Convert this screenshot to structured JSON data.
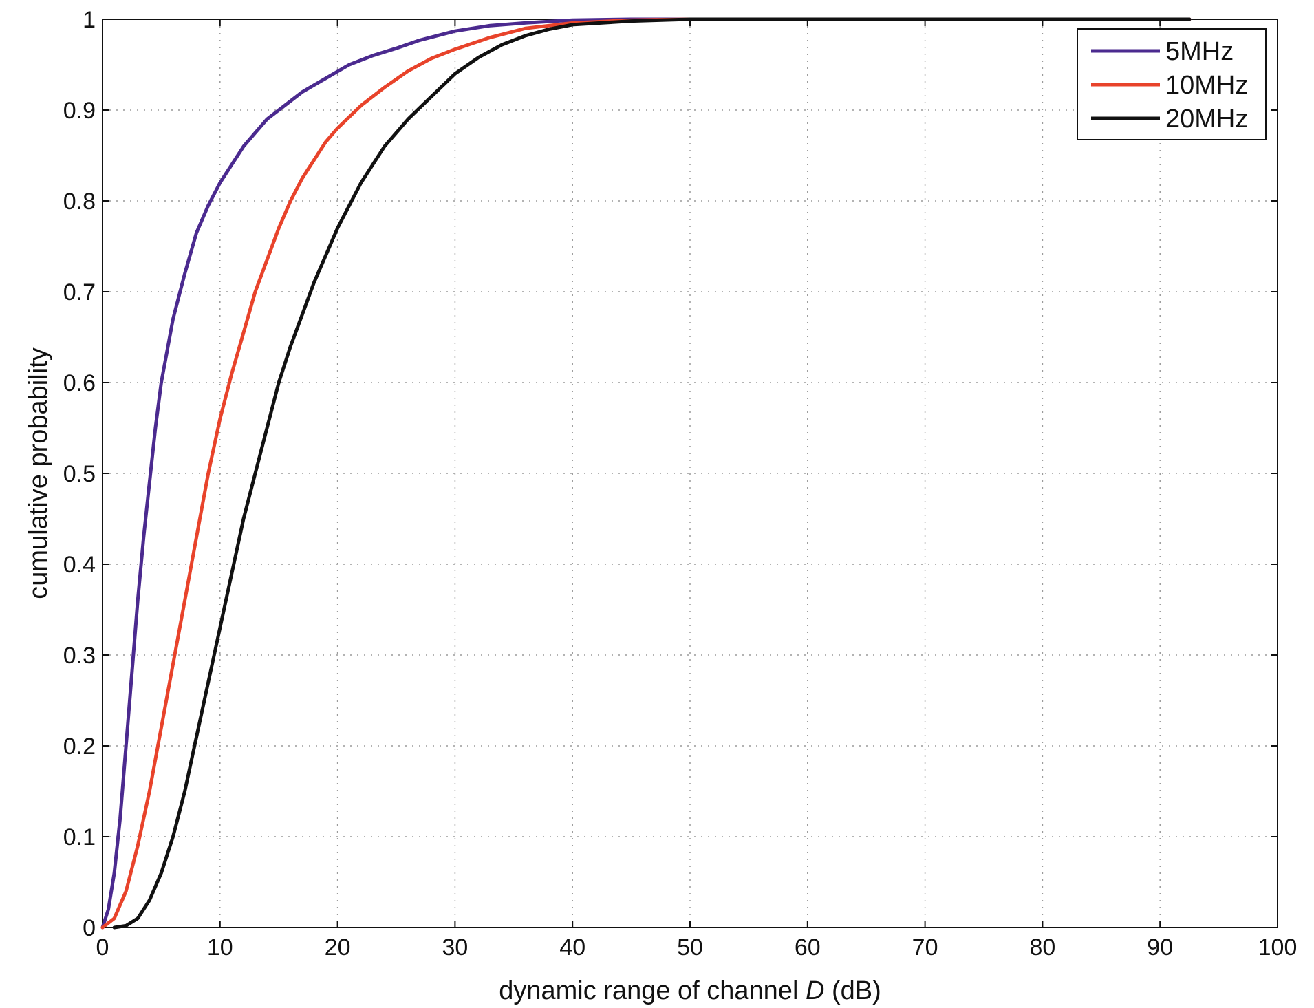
{
  "chart_data": {
    "type": "line",
    "title": "",
    "xlabel_prefix": "dynamic range of channel ",
    "xlabel_var": "D",
    "xlabel_suffix": " (dB)",
    "ylabel": "cumulative probability",
    "xlim": [
      0,
      100
    ],
    "ylim": [
      0,
      1
    ],
    "xticks": [
      0,
      10,
      20,
      30,
      40,
      50,
      60,
      70,
      80,
      90,
      100
    ],
    "yticks": [
      0,
      0.1,
      0.2,
      0.3,
      0.4,
      0.5,
      0.6,
      0.7,
      0.8,
      0.9,
      1
    ],
    "grid": true,
    "legend_position": "top-right",
    "series": [
      {
        "name": "5MHz",
        "color": "#4b2a8f",
        "x": [
          0,
          0.5,
          1,
          1.5,
          2,
          2.5,
          3,
          3.5,
          4,
          4.5,
          5,
          6,
          7,
          8,
          9,
          10,
          11,
          12,
          13,
          14,
          15,
          17,
          19,
          21,
          23,
          25,
          27,
          30,
          33,
          36,
          40,
          45,
          50,
          60,
          70,
          80,
          92.5
        ],
        "y": [
          0,
          0.02,
          0.06,
          0.12,
          0.2,
          0.28,
          0.36,
          0.43,
          0.49,
          0.55,
          0.6,
          0.67,
          0.72,
          0.765,
          0.795,
          0.82,
          0.84,
          0.86,
          0.875,
          0.89,
          0.9,
          0.92,
          0.935,
          0.95,
          0.96,
          0.968,
          0.977,
          0.987,
          0.993,
          0.996,
          0.999,
          1,
          1,
          1,
          1,
          1,
          1
        ]
      },
      {
        "name": "10MHz",
        "color": "#e8432b",
        "x": [
          0,
          1,
          2,
          3,
          4,
          5,
          6,
          7,
          8,
          9,
          10,
          11,
          12,
          13,
          14,
          15,
          16,
          17,
          18,
          19,
          20,
          22,
          24,
          26,
          28,
          30,
          33,
          36,
          40,
          45,
          50,
          60,
          70,
          80,
          92.5
        ],
        "y": [
          0,
          0.01,
          0.04,
          0.09,
          0.15,
          0.22,
          0.29,
          0.36,
          0.43,
          0.5,
          0.56,
          0.61,
          0.655,
          0.7,
          0.735,
          0.77,
          0.8,
          0.825,
          0.845,
          0.865,
          0.88,
          0.905,
          0.925,
          0.943,
          0.957,
          0.967,
          0.98,
          0.99,
          0.996,
          0.999,
          1,
          1,
          1,
          1,
          1
        ]
      },
      {
        "name": "20MHz",
        "color": "#111111",
        "x": [
          1,
          2,
          3,
          4,
          5,
          6,
          7,
          8,
          9,
          10,
          11,
          12,
          13,
          14,
          15,
          16,
          17,
          18,
          19,
          20,
          22,
          24,
          26,
          28,
          30,
          32,
          34,
          36,
          38,
          40,
          45,
          50,
          60,
          70,
          80,
          92.5
        ],
        "y": [
          0,
          0.002,
          0.01,
          0.03,
          0.06,
          0.1,
          0.15,
          0.21,
          0.27,
          0.33,
          0.39,
          0.45,
          0.5,
          0.55,
          0.6,
          0.64,
          0.675,
          0.71,
          0.74,
          0.77,
          0.82,
          0.86,
          0.89,
          0.915,
          0.94,
          0.958,
          0.972,
          0.982,
          0.989,
          0.994,
          0.998,
          1,
          1,
          1,
          1,
          1
        ]
      }
    ]
  }
}
